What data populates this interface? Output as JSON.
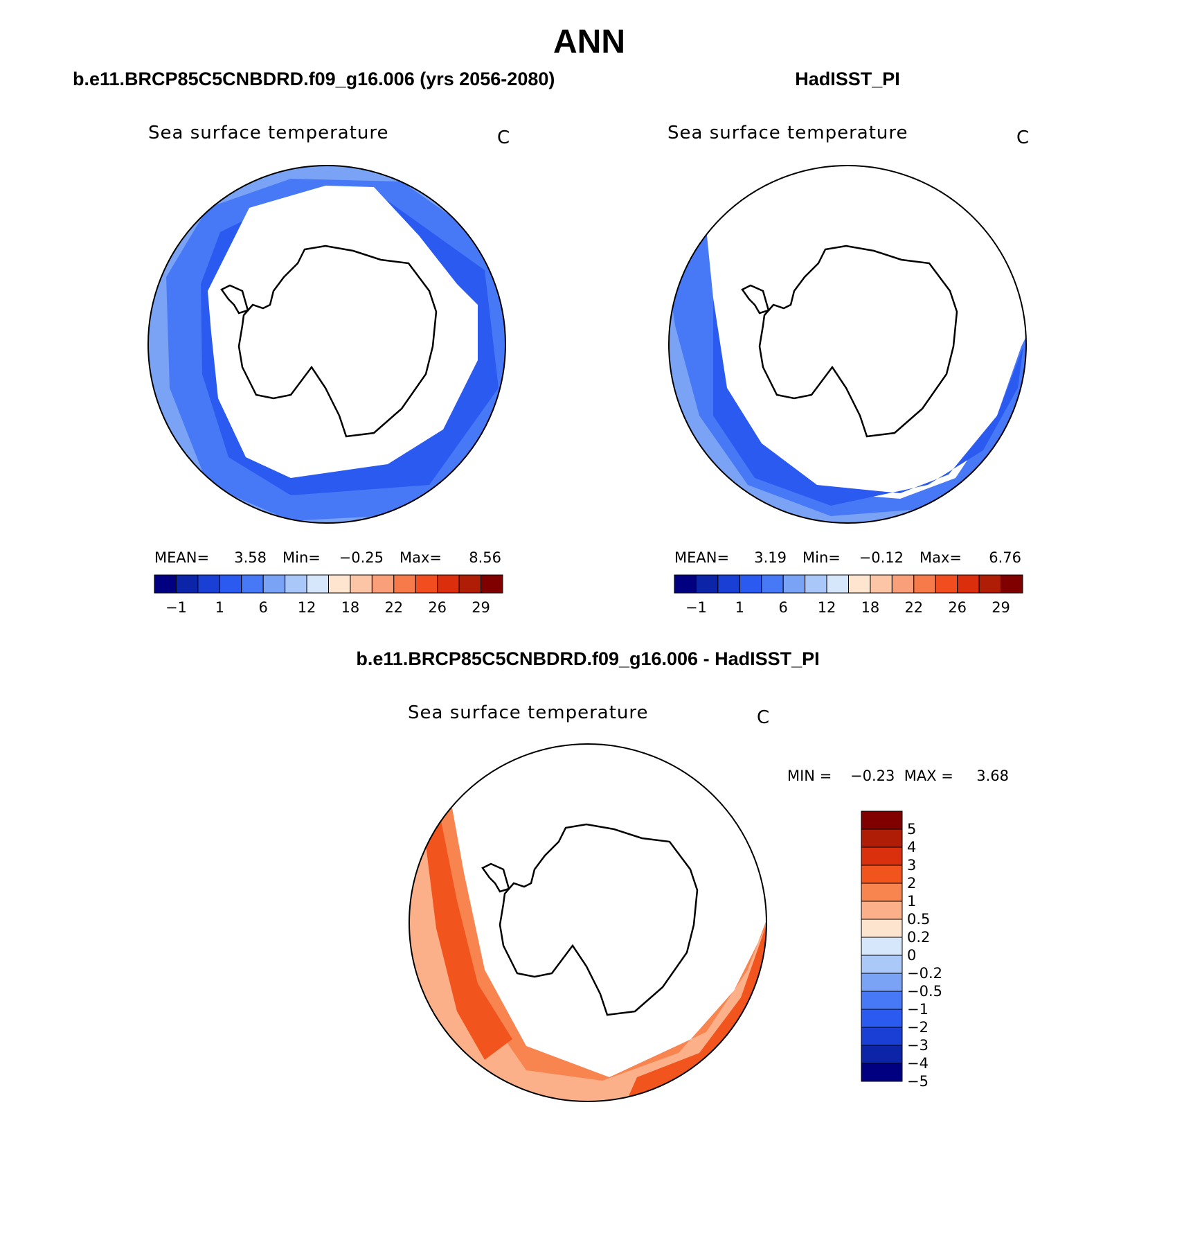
{
  "figure_title": "ANN",
  "panels": [
    {
      "id": "model",
      "title": "b.e11.BRCP85C5CNBDRD.f09_g16.006 (yrs 2056-2080)",
      "variable": "Sea surface temperature",
      "units": "C",
      "stats": {
        "mean_label": "MEAN=",
        "mean": "3.58",
        "min_label": "Min=",
        "min": "−0.25",
        "max_label": "Max=",
        "max": "8.56"
      },
      "colorbar_ticks": [
        "−1",
        "1",
        "6",
        "12",
        "18",
        "22",
        "26",
        "29"
      ]
    },
    {
      "id": "obs",
      "title": "HadISST_PI",
      "variable": "Sea surface temperature",
      "units": "C",
      "stats": {
        "mean_label": "MEAN=",
        "mean": "3.19",
        "min_label": "Min=",
        "min": "−0.12",
        "max_label": "Max=",
        "max": "6.76"
      },
      "colorbar_ticks": [
        "−1",
        "1",
        "6",
        "12",
        "18",
        "22",
        "26",
        "29"
      ]
    },
    {
      "id": "diff",
      "title": "b.e11.BRCP85C5CNBDRD.f09_g16.006 - HadISST_PI",
      "variable": "Sea surface temperature",
      "units": "C",
      "stats_text": "MIN =    −0.23  MAX =     3.68",
      "colorbar_ticks": [
        "5",
        "4",
        "3",
        "2",
        "1",
        "0.5",
        "0.2",
        "0",
        "−0.2",
        "−0.5",
        "−1",
        "−2",
        "−3",
        "−4",
        "−5"
      ]
    }
  ],
  "colors": {
    "abs_scale": [
      "#000080",
      "#0b24a8",
      "#1a3fd4",
      "#2a5af0",
      "#4779f7",
      "#7aa3f5",
      "#a9c7f8",
      "#d7e7fb",
      "#fde5d0",
      "#fcc6a6",
      "#f9a07a",
      "#f77a4a",
      "#f24d1e",
      "#db2e0d",
      "#b01d07",
      "#800000"
    ],
    "diff_scale": [
      "#800000",
      "#b01d07",
      "#db300d",
      "#f2541e",
      "#f8844f",
      "#fbb08a",
      "#fde4cf",
      "#d7e7fb",
      "#aac8f8",
      "#7aa3f5",
      "#4779f7",
      "#2a5af0",
      "#1a3fd4",
      "#0b24a8",
      "#000080"
    ],
    "coastline": "#000000"
  }
}
